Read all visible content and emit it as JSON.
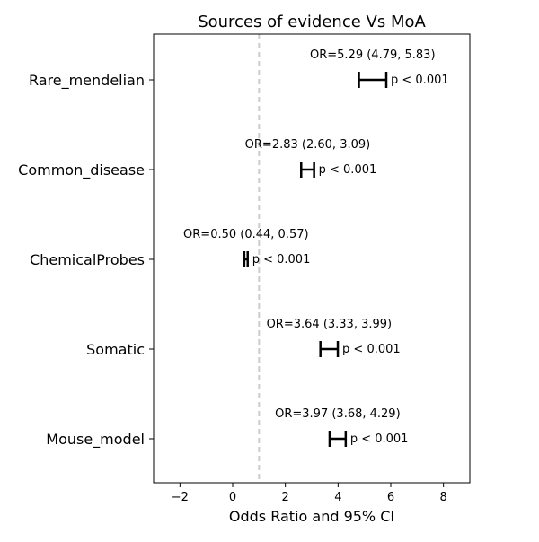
{
  "chart_data": {
    "type": "forest",
    "title": "Sources of evidence Vs MoA",
    "xlabel": "Odds Ratio and 95% CI",
    "ylabel": "",
    "xlim": [
      -3,
      9
    ],
    "xticks": [
      -2,
      0,
      2,
      4,
      6,
      8
    ],
    "xtick_labels": [
      "−2",
      "0",
      "2",
      "4",
      "6",
      "8"
    ],
    "reference_line": {
      "x": 1,
      "style": "dashed",
      "color": "#cccccc"
    },
    "grid": false,
    "colors": {
      "interval": "#000000",
      "text": "#000000",
      "axis": "#000000"
    },
    "rows": [
      {
        "label": "Rare_mendelian",
        "or": 5.29,
        "lo": 4.79,
        "hi": 5.83,
        "or_text": "OR=5.29 (4.79, 5.83)",
        "p_text": "p < 0.001"
      },
      {
        "label": "Common_disease",
        "or": 2.83,
        "lo": 2.6,
        "hi": 3.09,
        "or_text": "OR=2.83 (2.60, 3.09)",
        "p_text": "p < 0.001"
      },
      {
        "label": "ChemicalProbes",
        "or": 0.5,
        "lo": 0.44,
        "hi": 0.57,
        "or_text": "OR=0.50 (0.44, 0.57)",
        "p_text": "p < 0.001"
      },
      {
        "label": "Somatic",
        "or": 3.64,
        "lo": 3.33,
        "hi": 3.99,
        "or_text": "OR=3.64 (3.33, 3.99)",
        "p_text": "p < 0.001"
      },
      {
        "label": "Mouse_model",
        "or": 3.97,
        "lo": 3.68,
        "hi": 4.29,
        "or_text": "OR=3.97 (3.68, 4.29)",
        "p_text": "p < 0.001"
      }
    ]
  }
}
